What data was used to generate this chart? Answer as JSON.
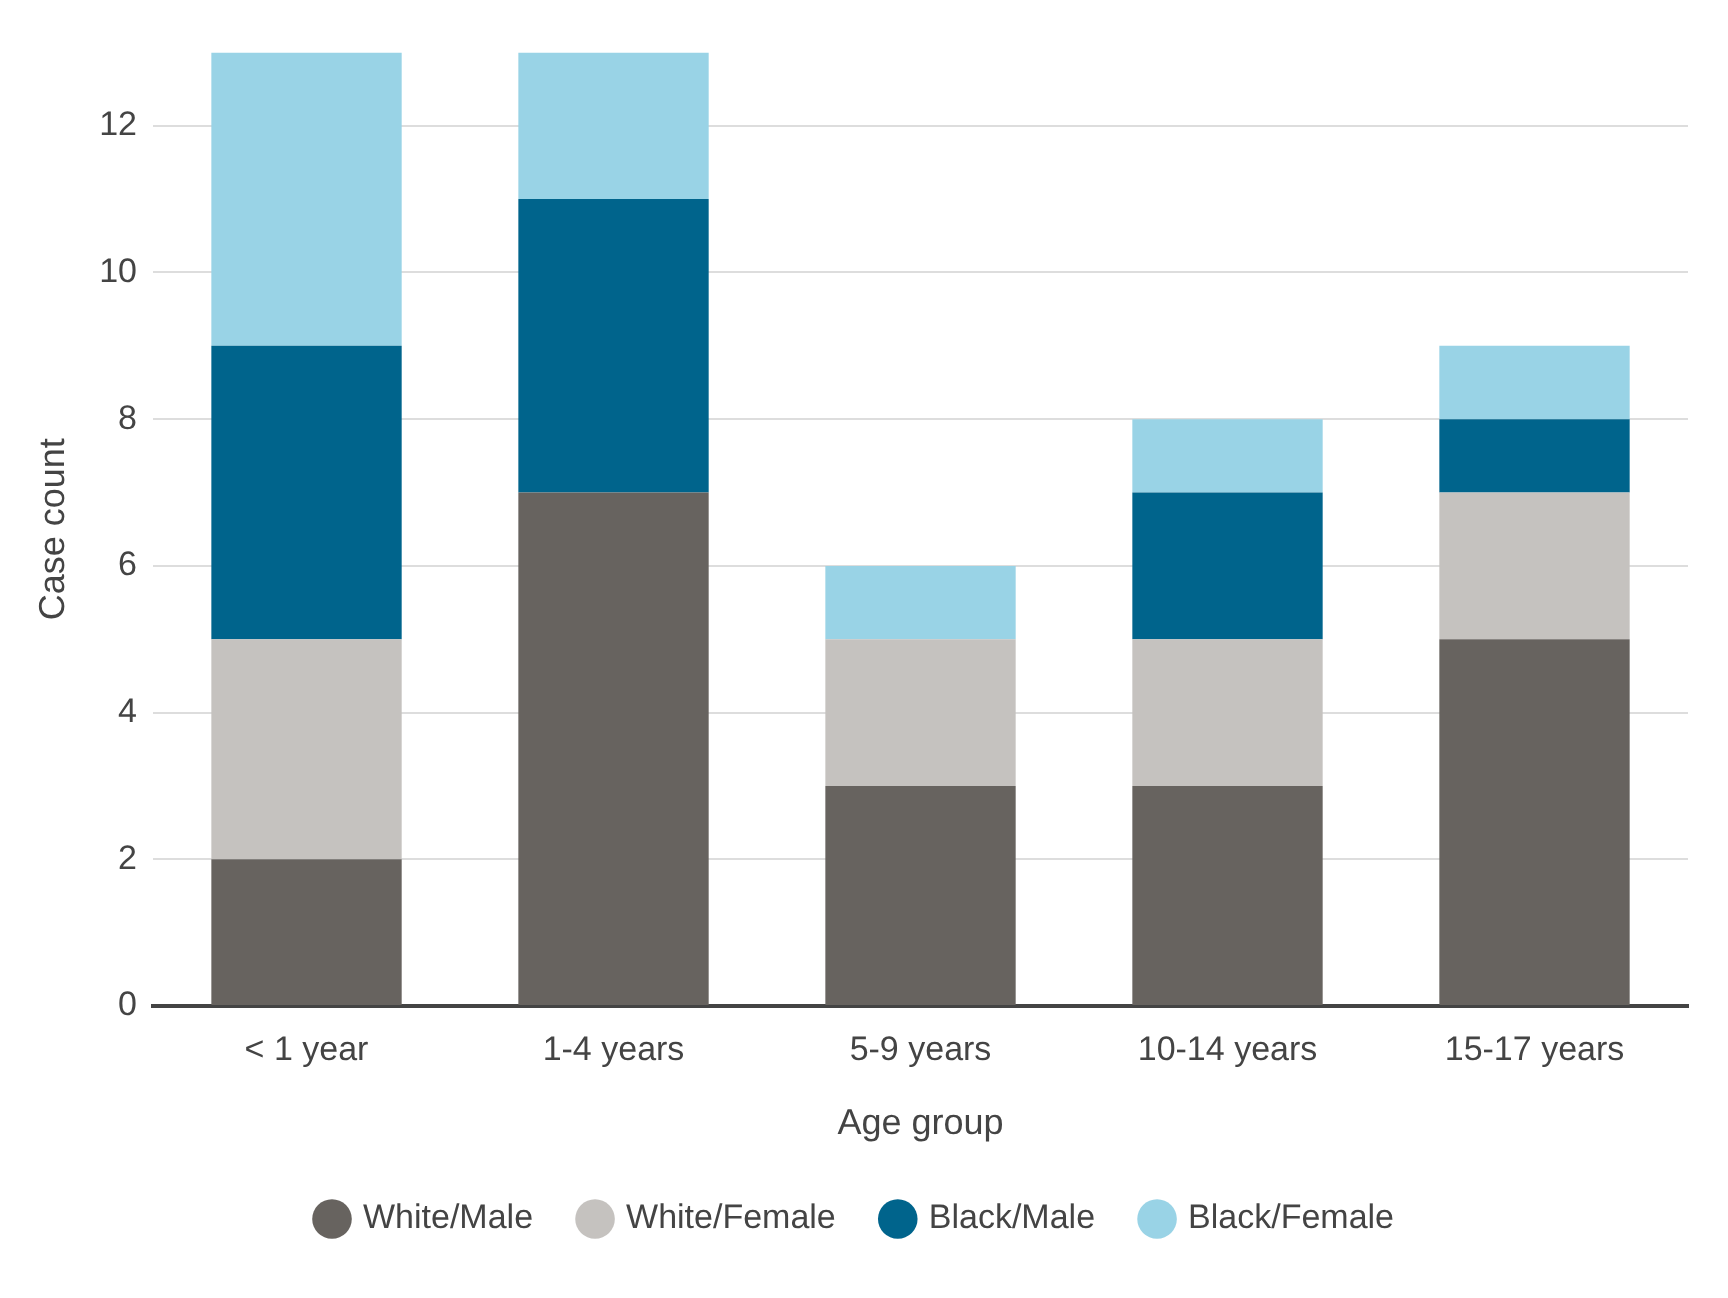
{
  "chart_data": {
    "type": "bar",
    "stacked": true,
    "xlabel": "Age group",
    "ylabel": "Case count",
    "categories": [
      "< 1 year",
      "1-4 years",
      "5-9 years",
      "10-14 years",
      "15-17 years"
    ],
    "series": [
      {
        "name": "White/Male",
        "color": "#67635f",
        "values": [
          2,
          7,
          3,
          3,
          5
        ]
      },
      {
        "name": "White/Female",
        "color": "#c5c2bf",
        "values": [
          3,
          0,
          2,
          2,
          2
        ]
      },
      {
        "name": "Black/Male",
        "color": "#00648c",
        "values": [
          4,
          4,
          0,
          2,
          1
        ]
      },
      {
        "name": "Black/Female",
        "color": "#99d3e6",
        "values": [
          4,
          2,
          1,
          1,
          1
        ]
      }
    ],
    "ylim": [
      0,
      13
    ],
    "yticks": [
      0,
      2,
      4,
      6,
      8,
      10,
      12
    ],
    "grid": "y",
    "legend": "bottom",
    "marker": "circle"
  }
}
